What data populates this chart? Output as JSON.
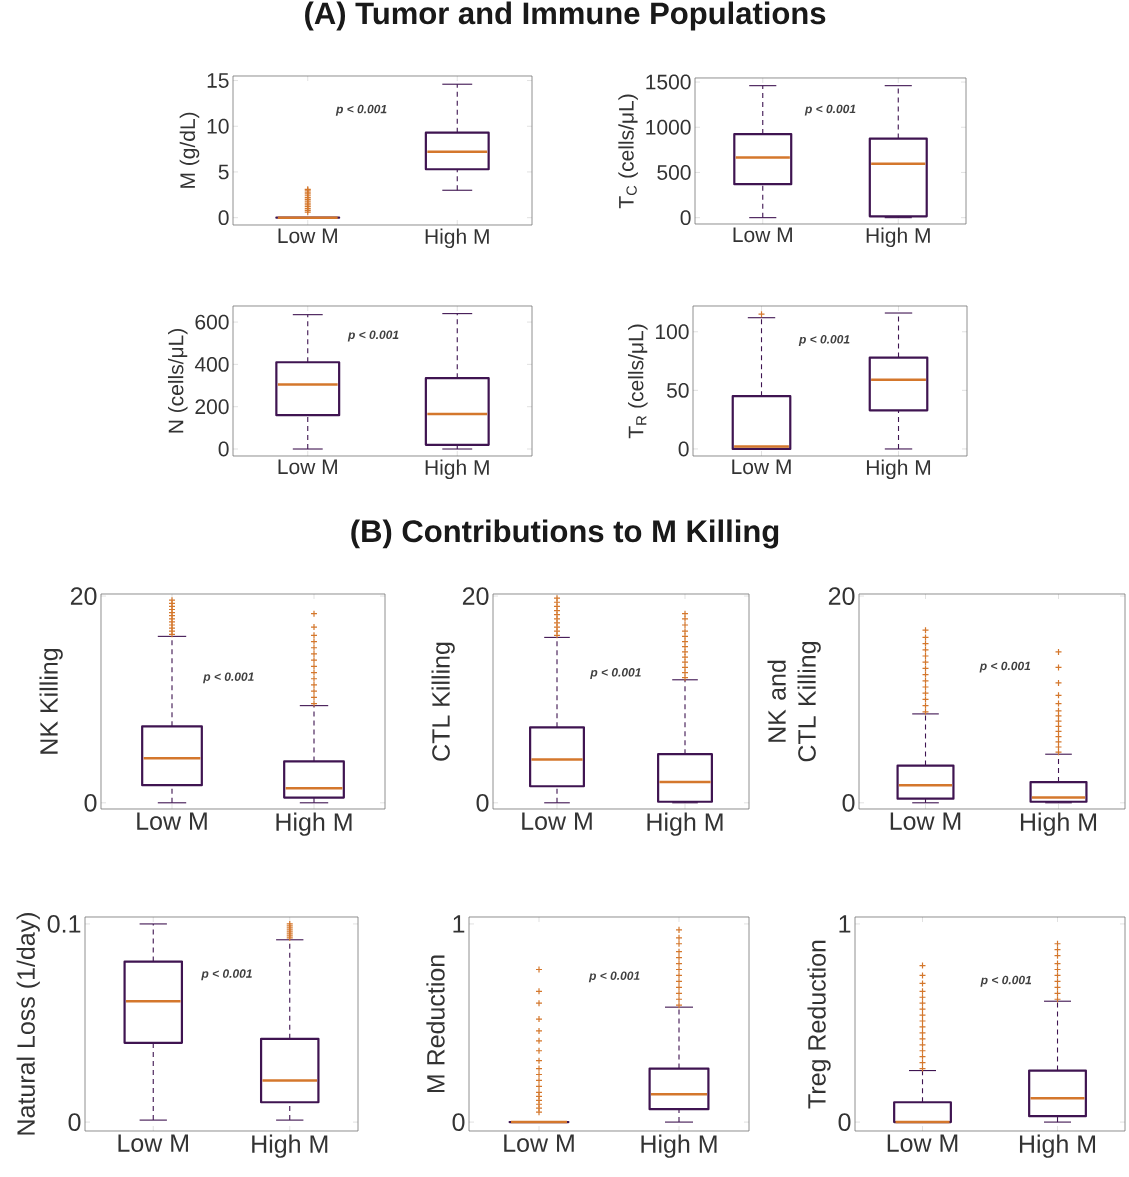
{
  "chart_data": [
    {
      "type": "box",
      "title": "(A) Tumor and Immune Populations",
      "ylabel": "M (g/dL)",
      "categories": [
        "Low M",
        "High M"
      ],
      "ylim": [
        -0.8,
        15.5
      ],
      "yticks": [
        0,
        5,
        10,
        15
      ],
      "marker": "cross",
      "annotations": [
        "p < 0.001"
      ],
      "series": [
        {
          "color": "#3f1451",
          "boxes": [
            {
              "low": 0,
              "q1": 0,
              "median": 0,
              "q3": 0,
              "high": 0,
              "outliers": [
                0.6,
                0.8,
                1.0,
                1.2,
                1.4,
                1.6,
                1.8,
                2.0,
                2.2,
                2.4,
                2.6,
                2.8,
                3.0,
                3.1
              ]
            },
            {
              "low": 3.0,
              "q1": 5.3,
              "median": 7.2,
              "q3": 9.3,
              "high": 14.6
            }
          ]
        }
      ]
    },
    {
      "type": "box",
      "ylabel": "T$_{C}$ (cells/μL)",
      "categories": [
        "Low M",
        "High M"
      ],
      "ylim": [
        -70,
        1545
      ],
      "yticks": [
        0,
        500,
        1000,
        1500
      ],
      "marker": "cross",
      "annotations": [
        "p < 0.001"
      ],
      "series": [
        {
          "color": "#3f1451",
          "boxes": [
            {
              "low": 0,
              "q1": 370,
              "median": 665,
              "q3": 925,
              "high": 1460
            },
            {
              "low": 0,
              "q1": 15,
              "median": 595,
              "q3": 875,
              "high": 1460
            }
          ]
        }
      ]
    },
    {
      "type": "box",
      "ylabel": "N (cells/μL)",
      "categories": [
        "Low M",
        "High M"
      ],
      "ylim": [
        -33,
        676
      ],
      "yticks": [
        0,
        200,
        400,
        600
      ],
      "marker": "cross",
      "annotations": [
        "p < 0.001"
      ],
      "series": [
        {
          "color": "#3f1451",
          "boxes": [
            {
              "low": 0,
              "q1": 160,
              "median": 305,
              "q3": 410,
              "high": 635
            },
            {
              "low": 0,
              "q1": 20,
              "median": 165,
              "q3": 335,
              "high": 640
            }
          ]
        }
      ]
    },
    {
      "type": "box",
      "ylabel": "T$_{R}$ (cells/μL)",
      "categories": [
        "Low M",
        "High M"
      ],
      "ylim": [
        -6,
        122
      ],
      "yticks": [
        0,
        50,
        100
      ],
      "marker": "cross",
      "annotations": [
        "p < 0.001"
      ],
      "series": [
        {
          "color": "#3f1451",
          "boxes": [
            {
              "low": 0,
              "q1": 0,
              "median": 2,
              "q3": 45,
              "high": 112,
              "outliers": [
                115
              ]
            },
            {
              "low": 0,
              "q1": 33,
              "median": 59,
              "q3": 78,
              "high": 116
            }
          ]
        }
      ]
    },
    {
      "type": "box",
      "ylabel": "NK Killing",
      "categories": [
        "Low M",
        "High M"
      ],
      "ylim": [
        -0.6,
        20.2
      ],
      "yticks": [
        0,
        20
      ],
      "marker": "cross",
      "annotations": [
        "p < 0.001"
      ],
      "series": [
        {
          "color": "#3f1451",
          "boxes": [
            {
              "low": 0,
              "q1": 1.7,
              "median": 4.3,
              "q3": 7.4,
              "high": 16.1,
              "outliers": [
                16.3,
                16.6,
                16.9,
                17.2,
                17.5,
                17.8,
                18.1,
                18.4,
                18.7,
                19.0,
                19.3,
                19.6
              ]
            },
            {
              "low": 0,
              "q1": 0.5,
              "median": 1.4,
              "q3": 4.0,
              "high": 9.4,
              "outliers": [
                9.6,
                10.2,
                10.8,
                11.4,
                12.0,
                12.6,
                13.2,
                13.8,
                14.4,
                15.0,
                15.6,
                16.2,
                17.0,
                18.3
              ]
            }
          ]
        }
      ]
    },
    {
      "type": "box",
      "title": "(B) Contributions to M Killing",
      "ylabel": "CTL Killing",
      "categories": [
        "Low M",
        "High M"
      ],
      "ylim": [
        -0.6,
        20.2
      ],
      "yticks": [
        0,
        20
      ],
      "marker": "cross",
      "annotations": [
        "p < 0.001"
      ],
      "series": [
        {
          "color": "#3f1451",
          "boxes": [
            {
              "low": 0,
              "q1": 1.6,
              "median": 4.2,
              "q3": 7.3,
              "high": 16.0,
              "outliers": [
                16.2,
                16.6,
                17.0,
                17.4,
                17.8,
                18.2,
                18.6,
                19.0,
                19.4,
                19.8
              ]
            },
            {
              "low": 0,
              "q1": 0.1,
              "median": 2.0,
              "q3": 4.7,
              "high": 11.9,
              "outliers": [
                12.1,
                12.6,
                13.1,
                13.6,
                14.1,
                14.6,
                15.1,
                15.6,
                16.1,
                16.6,
                17.2,
                17.8,
                18.3
              ]
            }
          ]
        }
      ]
    },
    {
      "type": "box",
      "ylabel": "NK and CTL Killing",
      "categories": [
        "Low M",
        "High M"
      ],
      "ylim": [
        -0.6,
        20.2
      ],
      "yticks": [
        0,
        20
      ],
      "marker": "cross",
      "annotations": [
        "p < 0.001"
      ],
      "series": [
        {
          "color": "#3f1451",
          "boxes": [
            {
              "low": 0,
              "q1": 0.4,
              "median": 1.7,
              "q3": 3.6,
              "high": 8.6,
              "outliers": [
                8.8,
                9.4,
                10.0,
                10.6,
                11.2,
                11.8,
                12.4,
                13.0,
                13.6,
                14.2,
                14.8,
                15.4,
                16.0,
                16.7
              ]
            },
            {
              "low": 0,
              "q1": 0.1,
              "median": 0.5,
              "q3": 2.0,
              "high": 4.7,
              "outliers": [
                4.9,
                5.4,
                5.9,
                6.4,
                6.9,
                7.4,
                7.9,
                8.4,
                8.9,
                9.6,
                10.4,
                11.6,
                13.1,
                14.6
              ]
            }
          ]
        }
      ]
    },
    {
      "type": "box",
      "ylabel": "Natural Loss (1/day)",
      "categories": [
        "Low M",
        "High M"
      ],
      "ylim": [
        -0.0045,
        0.1035
      ],
      "yticks": [
        0,
        0.1
      ],
      "marker": "cross",
      "annotations": [
        "p < 0.001"
      ],
      "series": [
        {
          "color": "#3f1451",
          "boxes": [
            {
              "low": 0.001,
              "q1": 0.04,
              "median": 0.061,
              "q3": 0.081,
              "high": 0.1
            },
            {
              "low": 0.001,
              "q1": 0.01,
              "median": 0.021,
              "q3": 0.042,
              "high": 0.092,
              "outliers": [
                0.093,
                0.094,
                0.095,
                0.096,
                0.097,
                0.098,
                0.099,
                0.1
              ]
            }
          ]
        }
      ]
    },
    {
      "type": "box",
      "ylabel": "M Reduction",
      "categories": [
        "Low M",
        "High M"
      ],
      "ylim": [
        -0.045,
        1.035
      ],
      "yticks": [
        0,
        1
      ],
      "marker": "cross",
      "annotations": [
        "p < 0.001"
      ],
      "series": [
        {
          "color": "#3f1451",
          "boxes": [
            {
              "low": 0,
              "q1": 0,
              "median": 0,
              "q3": 0,
              "high": 0,
              "outliers": [
                0.05,
                0.07,
                0.09,
                0.11,
                0.13,
                0.15,
                0.18,
                0.21,
                0.24,
                0.27,
                0.31,
                0.36,
                0.41,
                0.46,
                0.52,
                0.6,
                0.66,
                0.77
              ]
            },
            {
              "low": 0,
              "q1": 0.065,
              "median": 0.14,
              "q3": 0.27,
              "high": 0.58,
              "outliers": [
                0.59,
                0.62,
                0.65,
                0.68,
                0.71,
                0.74,
                0.77,
                0.8,
                0.83,
                0.86,
                0.9,
                0.93,
                0.97
              ]
            }
          ]
        }
      ]
    },
    {
      "type": "box",
      "ylabel": "Treg Reduction",
      "categories": [
        "Low M",
        "High M"
      ],
      "ylim": [
        -0.045,
        1.035
      ],
      "yticks": [
        0,
        1
      ],
      "marker": "cross",
      "annotations": [
        "p < 0.001"
      ],
      "series": [
        {
          "color": "#3f1451",
          "boxes": [
            {
              "low": 0,
              "q1": 0,
              "median": 0,
              "q3": 0.1,
              "high": 0.26,
              "outliers": [
                0.27,
                0.3,
                0.33,
                0.36,
                0.39,
                0.42,
                0.45,
                0.48,
                0.51,
                0.54,
                0.57,
                0.6,
                0.63,
                0.66,
                0.7,
                0.74,
                0.79
              ]
            },
            {
              "low": 0,
              "q1": 0.03,
              "median": 0.12,
              "q3": 0.26,
              "high": 0.61,
              "outliers": [
                0.62,
                0.65,
                0.68,
                0.71,
                0.74,
                0.77,
                0.8,
                0.84,
                0.87,
                0.9
              ]
            }
          ]
        }
      ]
    }
  ]
}
